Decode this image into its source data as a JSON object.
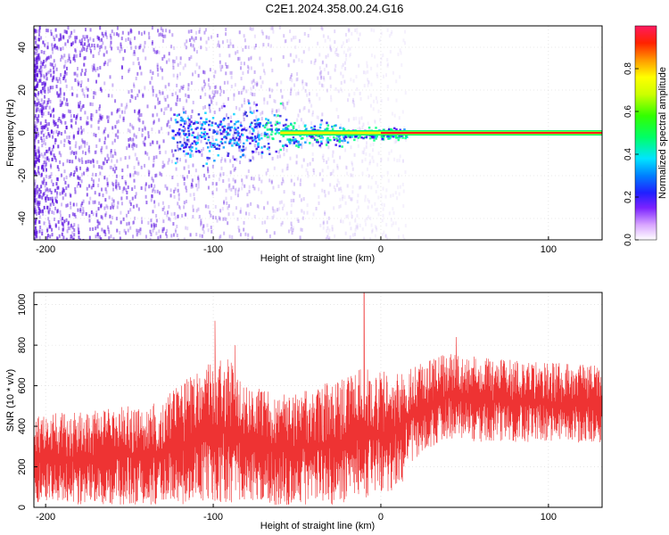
{
  "title": "C2E1.2024.358.00.24.G16",
  "colors": {
    "snr_line": "#ee3333",
    "spectral_points": "#5a10e0",
    "trace_core": "#ff1a1a"
  },
  "chart_data": [
    {
      "type": "heatmap",
      "name": "Spectrogram",
      "xlabel": "Height of straight line (km)",
      "ylabel": "Frequency (Hz)",
      "xlim": [
        -207,
        132
      ],
      "ylim": [
        -50,
        50
      ],
      "xticks": [
        -200,
        -100,
        0,
        100
      ],
      "yticks": [
        -40,
        -20,
        0,
        20,
        40
      ],
      "grid": true,
      "colorbar": {
        "label": "Normalized spectral amplitude",
        "range": [
          0.0,
          1.0
        ],
        "ticks": [
          0.0,
          0.2,
          0.4,
          0.6,
          0.8
        ]
      },
      "dominant_frequency_trace": {
        "x_from": -60,
        "x_to": 132,
        "y": 0,
        "amplitude_start": 0.5,
        "amplitude_end": 1.0
      }
    },
    {
      "type": "line",
      "name": "SNR",
      "xlabel": "Height of straight line (km)",
      "ylabel": "SNR (10 * v/v)",
      "xlim": [
        -207,
        132
      ],
      "ylim": [
        0,
        1060
      ],
      "xticks": [
        -200,
        -100,
        0,
        100
      ],
      "yticks": [
        0,
        200,
        400,
        600,
        800,
        1000
      ],
      "grid": true,
      "envelope": [
        {
          "x": -207,
          "low": 20,
          "high": 460
        },
        {
          "x": -180,
          "low": 15,
          "high": 470
        },
        {
          "x": -150,
          "low": 10,
          "high": 500
        },
        {
          "x": -130,
          "low": 10,
          "high": 530
        },
        {
          "x": -115,
          "low": 15,
          "high": 650
        },
        {
          "x": -100,
          "low": 20,
          "high": 720
        },
        {
          "x": -90,
          "low": 20,
          "high": 740
        },
        {
          "x": -80,
          "low": 15,
          "high": 600
        },
        {
          "x": -60,
          "low": 10,
          "high": 560
        },
        {
          "x": -40,
          "low": 10,
          "high": 600
        },
        {
          "x": -20,
          "low": 10,
          "high": 640
        },
        {
          "x": -10,
          "low": 40,
          "high": 700
        },
        {
          "x": -5,
          "low": 60,
          "high": 680
        },
        {
          "x": 10,
          "low": 80,
          "high": 660
        },
        {
          "x": 20,
          "low": 240,
          "high": 700
        },
        {
          "x": 40,
          "low": 340,
          "high": 760
        },
        {
          "x": 60,
          "low": 320,
          "high": 740
        },
        {
          "x": 90,
          "low": 320,
          "high": 720
        },
        {
          "x": 132,
          "low": 320,
          "high": 700
        }
      ],
      "spikes": [
        {
          "x": -99,
          "y": 920
        },
        {
          "x": -87,
          "y": 800
        },
        {
          "x": -10,
          "y": 1060
        },
        {
          "x": 45,
          "y": 840
        }
      ]
    }
  ]
}
